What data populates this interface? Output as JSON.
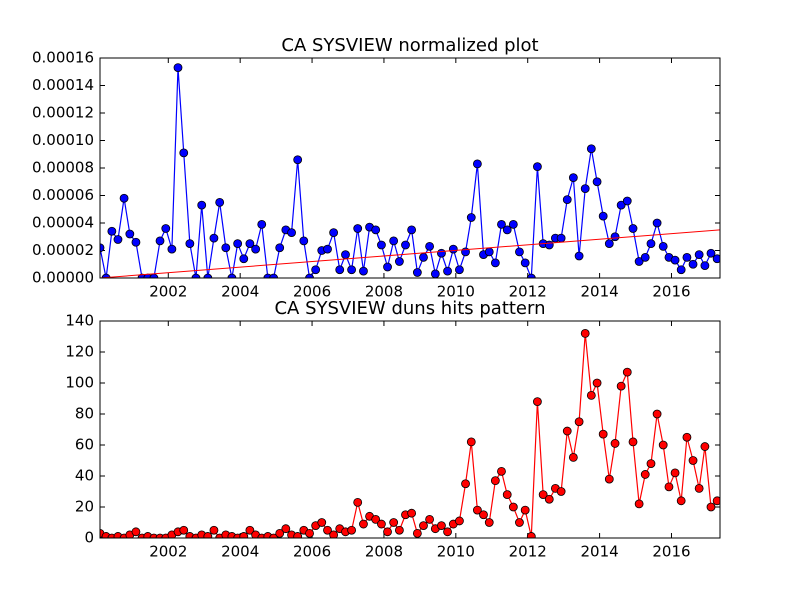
{
  "chart_data": [
    {
      "type": "line",
      "title": "CA SYSVIEW normalized plot",
      "x": [
        2000.1,
        2000.27,
        2000.43,
        2000.6,
        2000.77,
        2000.93,
        2001.1,
        2001.27,
        2001.43,
        2001.6,
        2001.77,
        2001.93,
        2002.1,
        2002.27,
        2002.43,
        2002.6,
        2002.77,
        2002.93,
        2003.1,
        2003.27,
        2003.43,
        2003.6,
        2003.77,
        2003.93,
        2004.1,
        2004.27,
        2004.43,
        2004.6,
        2004.77,
        2004.93,
        2005.1,
        2005.27,
        2005.43,
        2005.6,
        2005.77,
        2005.93,
        2006.1,
        2006.27,
        2006.43,
        2006.6,
        2006.77,
        2006.93,
        2007.1,
        2007.27,
        2007.43,
        2007.6,
        2007.77,
        2007.93,
        2008.1,
        2008.27,
        2008.43,
        2008.6,
        2008.77,
        2008.93,
        2009.1,
        2009.27,
        2009.43,
        2009.6,
        2009.77,
        2009.93,
        2010.1,
        2010.27,
        2010.43,
        2010.6,
        2010.77,
        2010.93,
        2011.1,
        2011.27,
        2011.43,
        2011.6,
        2011.77,
        2011.93,
        2012.1,
        2012.27,
        2012.43,
        2012.6,
        2012.77,
        2012.93,
        2013.1,
        2013.27,
        2013.43,
        2013.6,
        2013.77,
        2013.93,
        2014.1,
        2014.27,
        2014.43,
        2014.6,
        2014.77,
        2014.93,
        2015.1,
        2015.27,
        2015.43,
        2015.6,
        2015.77,
        2015.93,
        2016.1,
        2016.27,
        2016.43,
        2016.6,
        2016.77,
        2016.93,
        2017.1,
        2017.27
      ],
      "series": [
        {
          "color": "#0000ff",
          "values": [
            2.2e-05,
            0,
            3.4e-05,
            2.8e-05,
            5.8e-05,
            3.2e-05,
            2.6e-05,
            0,
            0,
            0,
            2.7e-05,
            3.6e-05,
            2.1e-05,
            0.000153,
            9.1e-05,
            2.5e-05,
            0,
            5.3e-05,
            0,
            2.9e-05,
            5.5e-05,
            2.2e-05,
            0,
            2.5e-05,
            1.4e-05,
            2.5e-05,
            2.1e-05,
            3.9e-05,
            0,
            0,
            2.2e-05,
            3.5e-05,
            3.3e-05,
            8.6e-05,
            2.7e-05,
            0,
            6e-06,
            2e-05,
            2.1e-05,
            3.3e-05,
            6e-06,
            1.7e-05,
            6e-06,
            3.6e-05,
            5e-06,
            3.7e-05,
            3.5e-05,
            2.4e-05,
            8e-06,
            2.7e-05,
            1.2e-05,
            2.4e-05,
            3.5e-05,
            4e-06,
            1.5e-05,
            2.3e-05,
            3e-06,
            1.8e-05,
            5e-06,
            2.1e-05,
            6e-06,
            1.9e-05,
            4.4e-05,
            8.3e-05,
            1.7e-05,
            1.9e-05,
            1.1e-05,
            3.9e-05,
            3.5e-05,
            3.9e-05,
            1.9e-05,
            1.1e-05,
            0,
            8.1e-05,
            2.5e-05,
            2.4e-05,
            2.9e-05,
            2.9e-05,
            5.7e-05,
            7.3e-05,
            1.6e-05,
            6.5e-05,
            9.4e-05,
            7e-05,
            4.5e-05,
            2.5e-05,
            3e-05,
            5.3e-05,
            5.6e-05,
            3.6e-05,
            1.2e-05,
            1.5e-05,
            2.5e-05,
            4e-05,
            2.3e-05,
            1.5e-05,
            1.3e-05,
            6e-06,
            1.5e-05,
            1e-05,
            1.7e-05,
            9e-06,
            1.8e-05,
            1.4e-05
          ]
        }
      ],
      "fit_line": {
        "color": "#ff0000",
        "x": [
          2000.1,
          2017.35
        ],
        "values": [
          0,
          3.5e-05
        ]
      },
      "xlim": [
        2000.1,
        2017.35
      ],
      "xticks": [
        2002,
        2004,
        2006,
        2008,
        2010,
        2012,
        2014,
        2016
      ],
      "ylim": [
        0,
        0.00016
      ],
      "yticks": [
        {
          "value": 0,
          "label": "0.00000"
        },
        {
          "value": 2e-05,
          "label": "0.00002"
        },
        {
          "value": 4e-05,
          "label": "0.00004"
        },
        {
          "value": 6e-05,
          "label": "0.00006"
        },
        {
          "value": 8e-05,
          "label": "0.00008"
        },
        {
          "value": 0.0001,
          "label": "0.00010"
        },
        {
          "value": 0.00012,
          "label": "0.00012"
        },
        {
          "value": 0.00014,
          "label": "0.00014"
        },
        {
          "value": 0.00016,
          "label": "0.00016"
        }
      ],
      "grid": false
    },
    {
      "type": "line",
      "title": "CA SYSVIEW duns hits pattern",
      "x": [
        2000.1,
        2000.27,
        2000.43,
        2000.6,
        2000.77,
        2000.93,
        2001.1,
        2001.27,
        2001.43,
        2001.6,
        2001.77,
        2001.93,
        2002.1,
        2002.27,
        2002.43,
        2002.6,
        2002.77,
        2002.93,
        2003.1,
        2003.27,
        2003.43,
        2003.6,
        2003.77,
        2003.93,
        2004.1,
        2004.27,
        2004.43,
        2004.6,
        2004.77,
        2004.93,
        2005.1,
        2005.27,
        2005.43,
        2005.6,
        2005.77,
        2005.93,
        2006.1,
        2006.27,
        2006.43,
        2006.6,
        2006.77,
        2006.93,
        2007.1,
        2007.27,
        2007.43,
        2007.6,
        2007.77,
        2007.93,
        2008.1,
        2008.27,
        2008.43,
        2008.6,
        2008.77,
        2008.93,
        2009.1,
        2009.27,
        2009.43,
        2009.6,
        2009.77,
        2009.93,
        2010.1,
        2010.27,
        2010.43,
        2010.6,
        2010.77,
        2010.93,
        2011.1,
        2011.27,
        2011.43,
        2011.6,
        2011.77,
        2011.93,
        2012.1,
        2012.27,
        2012.43,
        2012.6,
        2012.77,
        2012.93,
        2013.1,
        2013.27,
        2013.43,
        2013.6,
        2013.77,
        2013.93,
        2014.1,
        2014.27,
        2014.43,
        2014.6,
        2014.77,
        2014.93,
        2015.1,
        2015.27,
        2015.43,
        2015.6,
        2015.77,
        2015.93,
        2016.1,
        2016.27,
        2016.43,
        2016.6,
        2016.77,
        2016.93,
        2017.1,
        2017.27
      ],
      "series": [
        {
          "color": "#ff0000",
          "values": [
            3,
            1,
            0,
            1,
            0,
            2,
            4,
            0,
            1,
            0,
            0,
            0,
            2,
            4,
            5,
            1,
            0,
            2,
            1,
            5,
            0,
            2,
            1,
            0,
            1,
            5,
            2,
            0,
            1,
            0,
            3,
            6,
            2,
            1,
            5,
            3,
            8,
            10,
            5,
            2,
            6,
            4,
            5,
            23,
            9,
            14,
            12,
            9,
            4,
            10,
            5,
            15,
            16,
            3,
            8,
            12,
            6,
            8,
            4,
            9,
            11,
            35,
            62,
            18,
            15,
            10,
            37,
            43,
            28,
            20,
            10,
            18,
            1,
            88,
            28,
            25,
            32,
            30,
            69,
            52,
            75,
            132,
            92,
            100,
            67,
            38,
            61,
            98,
            107,
            62,
            22,
            41,
            48,
            80,
            60,
            33,
            42,
            24,
            65,
            50,
            32,
            59,
            20,
            24
          ]
        }
      ],
      "xlim": [
        2000.1,
        2017.35
      ],
      "xticks": [
        2002,
        2004,
        2006,
        2008,
        2010,
        2012,
        2014,
        2016
      ],
      "ylim": [
        0,
        140
      ],
      "yticks": [
        0,
        20,
        40,
        60,
        80,
        100,
        120,
        140
      ],
      "grid": false
    }
  ]
}
